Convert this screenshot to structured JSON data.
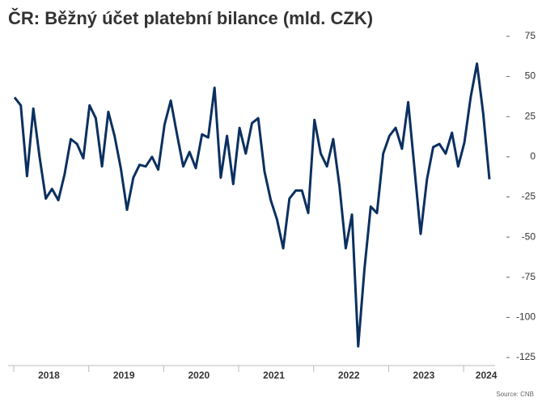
{
  "chart_data": {
    "type": "line",
    "title": "ČR: Běžný účet platební bilance (mld. CZK)",
    "source": "Source: CNB",
    "categories": [
      null,
      null,
      null,
      null,
      null,
      null,
      "2018",
      null,
      null,
      null,
      null,
      null,
      null,
      null,
      null,
      null,
      null,
      null,
      "2019",
      null,
      null,
      null,
      null,
      null,
      null,
      null,
      null,
      null,
      null,
      null,
      "2020",
      null,
      null,
      null,
      null,
      null,
      null,
      null,
      null,
      null,
      null,
      null,
      "2021",
      null,
      null,
      null,
      null,
      null,
      null,
      null,
      null,
      null,
      null,
      null,
      "2022",
      null,
      null,
      null,
      null,
      null,
      null,
      null,
      null,
      null,
      null,
      null,
      "2023",
      null,
      null,
      null,
      null,
      null,
      null,
      null,
      null,
      null,
      "2024"
    ],
    "series": [
      {
        "name": "Běžný účet",
        "color": "#0b3060",
        "values": [
          37,
          32,
          -12,
          30,
          0,
          -26,
          -20,
          -27,
          -11,
          11,
          8,
          -1,
          32,
          24,
          -6,
          28,
          13,
          -7,
          -33,
          -13,
          -5,
          -6,
          0,
          -8,
          20,
          35,
          14,
          -6,
          3,
          -7,
          14,
          12,
          43,
          -13,
          13,
          -17,
          18,
          2,
          21,
          24,
          -9,
          -27,
          -39,
          -57,
          -26,
          -21,
          -21,
          -35,
          23,
          2,
          -6,
          11,
          -18,
          -57,
          -36,
          -118,
          -70,
          -31,
          -35,
          2,
          13,
          18,
          5,
          34,
          -7,
          -48,
          -14,
          6,
          8,
          2,
          15,
          -6,
          9,
          37,
          58,
          27,
          -14
        ]
      }
    ],
    "ylim": [
      -130,
      80
    ],
    "yticks": [
      -125,
      -100,
      -75,
      -50,
      -25,
      0,
      25,
      50,
      75
    ],
    "y_axis_side": "right"
  }
}
